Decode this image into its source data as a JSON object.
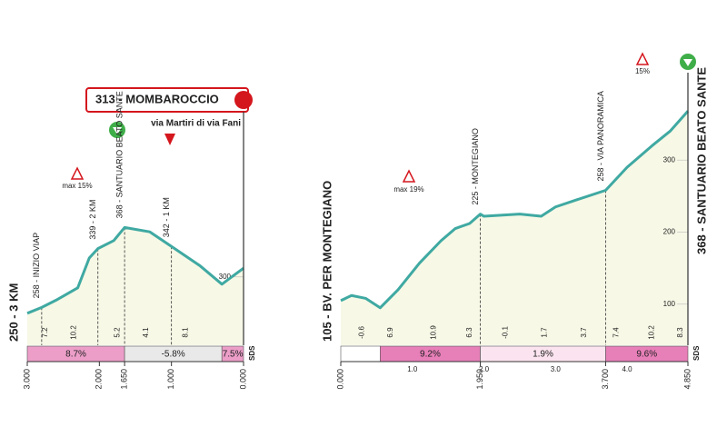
{
  "chart_data": [
    {
      "type": "elevation-profile",
      "title": "313 - MOMBAROCCIO",
      "subtitle": "via Martiri di via Fani",
      "start_label": "250 - 3 KM",
      "max_label": "max 15%",
      "logo": "SDS",
      "xlim": [
        3,
        0
      ],
      "ylim": [
        206,
        431
      ],
      "yticks": [
        300
      ],
      "x": [
        3.0,
        2.8,
        2.6,
        2.3,
        2.14,
        2.02,
        1.8,
        1.65,
        1.3,
        1.0,
        0.6,
        0.3,
        0.0
      ],
      "values": [
        250,
        258,
        268,
        285,
        326,
        339,
        350,
        368,
        362,
        342,
        315,
        290,
        312
      ],
      "line_color": "#3fa9a2",
      "fill_color": "#f7f8e6",
      "landmarks": [
        {
          "km": 2.8,
          "label": "258 - INIZIO VIAP"
        },
        {
          "km": 2.02,
          "label": "339 - 2 KM"
        },
        {
          "km": 1.65,
          "label": "368 - SANTUARIO BEATO SANTE"
        },
        {
          "km": 1.0,
          "label": "342 - 1 KM"
        }
      ],
      "gradients": [
        {
          "km": 2.75,
          "value": 7.2
        },
        {
          "km": 2.35,
          "value": 10.2
        },
        {
          "km": 1.75,
          "value": 5.2
        },
        {
          "km": 1.35,
          "value": 4.1
        },
        {
          "km": 0.8,
          "value": 8.1
        }
      ],
      "segments": [
        {
          "from": 3,
          "to": 1.65,
          "label": "8.7%",
          "color": "#ec9ec8"
        },
        {
          "from": 1.65,
          "to": 0.3,
          "label": "-5.8%",
          "color": "#e9e9e9"
        },
        {
          "from": 0.3,
          "to": 0,
          "label": "7.5%",
          "color": "#ec9ec8"
        }
      ],
      "distance_marks": [
        {
          "value": 3,
          "label": "3.000"
        },
        {
          "value": 2,
          "label": "2.000"
        },
        {
          "value": 1.65,
          "label": "1.650"
        },
        {
          "value": 1,
          "label": "1.000"
        },
        {
          "value": 0,
          "label": "0.000"
        }
      ],
      "km_ticks": []
    },
    {
      "type": "elevation-profile",
      "start_label": "105 - BV. PER MONTEGIANO",
      "end_label": "368 - SANTUARIO BEATO SANTE",
      "max_label": "max 19%",
      "top_label": "15%",
      "logo": "SDS",
      "xlim": [
        0,
        4.85
      ],
      "ylim": [
        43,
        386
      ],
      "yticks": [
        100,
        200,
        300
      ],
      "x": [
        0,
        0.15,
        0.35,
        0.55,
        0.8,
        1.1,
        1.4,
        1.6,
        1.8,
        1.95,
        2.0,
        2.5,
        2.8,
        3.0,
        3.3,
        3.7,
        4.0,
        4.35,
        4.6,
        4.85
      ],
      "values": [
        105,
        112,
        108,
        95,
        120,
        157,
        188,
        205,
        212,
        225,
        222,
        225,
        222,
        235,
        245,
        258,
        290,
        320,
        340,
        368
      ],
      "line_color": "#3fa9a2",
      "fill_color": "#f7f8e6",
      "landmarks": [
        {
          "km": 1.95,
          "label": "225 - MONTEGIANO"
        },
        {
          "km": 3.7,
          "label": "258 - VIA PANORAMICA"
        }
      ],
      "gradients": [
        {
          "km": 0.3,
          "value": -0.6
        },
        {
          "km": 0.7,
          "value": 6.9
        },
        {
          "km": 1.3,
          "value": 10.9
        },
        {
          "km": 1.8,
          "value": 6.3
        },
        {
          "km": 2.3,
          "value": -0.1
        },
        {
          "km": 2.85,
          "value": 1.7
        },
        {
          "km": 3.4,
          "value": 3.7
        },
        {
          "km": 3.85,
          "value": 7.4
        },
        {
          "km": 4.35,
          "value": 10.2
        },
        {
          "km": 4.75,
          "value": 8.3
        }
      ],
      "segments": [
        {
          "from": 0,
          "to": 0.55,
          "label": "",
          "color": "#ffffff"
        },
        {
          "from": 0.55,
          "to": 1.95,
          "label": "9.2%",
          "color": "#e77fb8"
        },
        {
          "from": 1.95,
          "to": 3.7,
          "label": "1.9%",
          "color": "#fbe4ef"
        },
        {
          "from": 3.7,
          "to": 4.85,
          "label": "9.6%",
          "color": "#e77fb8"
        }
      ],
      "distance_marks": [
        {
          "value": 0,
          "label": "0.000"
        },
        {
          "value": 1.95,
          "label": "1.950"
        },
        {
          "value": 3.7,
          "label": "3.700"
        },
        {
          "value": 4.85,
          "label": "4.850"
        }
      ],
      "km_ticks": [
        {
          "value": 1,
          "label": "1.0"
        },
        {
          "value": 2,
          "label": "2.0"
        },
        {
          "value": 3,
          "label": "3.0"
        },
        {
          "value": 4,
          "label": "4.0"
        }
      ]
    }
  ]
}
